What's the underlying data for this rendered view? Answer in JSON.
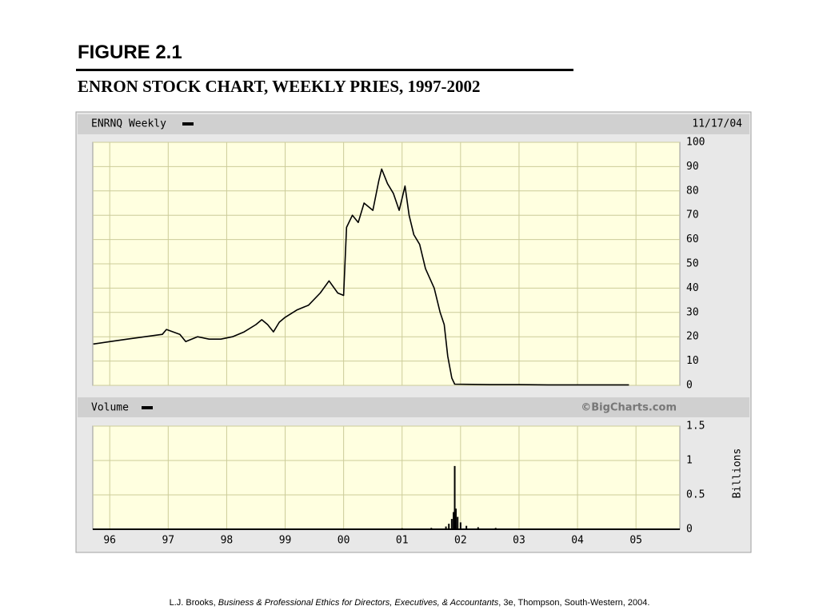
{
  "figure_label": "FIGURE 2.1",
  "caption": "ENRON STOCK CHART, WEEKLY PRIES, 1997-2002",
  "citation": {
    "author": "L.J. Brooks, ",
    "title": "Business & Professional Ethics for Directors, Executives, & Accountants",
    "rest": ", 3e, Thompson, South-Western, 2004."
  },
  "chart_data": [
    {
      "type": "line",
      "header": "ENRNQ Weekly",
      "date": "11/17/04",
      "color": "#000000",
      "grid": true,
      "x": [
        1995.72,
        1996.0,
        1996.3,
        1996.6,
        1996.9,
        1996.97,
        1997.2,
        1997.3,
        1997.5,
        1997.7,
        1997.9,
        1998.1,
        1998.3,
        1998.5,
        1998.6,
        1998.7,
        1998.8,
        1998.9,
        1999.0,
        1999.2,
        1999.4,
        1999.6,
        1999.75,
        1999.9,
        2000.0,
        2000.05,
        2000.15,
        2000.25,
        2000.35,
        2000.5,
        2000.6,
        2000.65,
        2000.75,
        2000.85,
        2000.95,
        2001.05,
        2001.12,
        2001.2,
        2001.3,
        2001.4,
        2001.55,
        2001.65,
        2001.72,
        2001.78,
        2001.85,
        2001.9,
        2002.5,
        2003.0,
        2003.5,
        2004.0,
        2004.5,
        2004.88
      ],
      "values": [
        17,
        18,
        19,
        20,
        21,
        23,
        21,
        18,
        20,
        19,
        19,
        20,
        22,
        25,
        27,
        25,
        22,
        26,
        28,
        31,
        33,
        38,
        43,
        38,
        37,
        65,
        70,
        67,
        75,
        72,
        84,
        89,
        83,
        79,
        72,
        82,
        70,
        62,
        58,
        48,
        40,
        30,
        25,
        12,
        3,
        0.5,
        0.3,
        0.3,
        0.2,
        0.2,
        0.2,
        0.2
      ],
      "xlim": [
        1995.71,
        2005.75
      ],
      "ylim": [
        0,
        100
      ],
      "yticks": [
        0,
        10,
        20,
        30,
        40,
        50,
        60,
        70,
        80,
        90,
        100
      ]
    },
    {
      "type": "bar",
      "header": "Volume",
      "source": "©BigCharts.com",
      "y_label": "Billions",
      "color": "#000000",
      "grid": true,
      "x": [
        1996.5,
        1997.5,
        1998.5,
        1999.5,
        2000.5,
        2001.0,
        2001.5,
        2001.75,
        2001.8,
        2001.85,
        2001.88,
        2001.9,
        2001.92,
        2001.95,
        2002.0,
        2002.1,
        2002.3,
        2002.6,
        2003.0,
        2003.5,
        2004.0,
        2004.5
      ],
      "values": [
        0.005,
        0.005,
        0.008,
        0.008,
        0.01,
        0.015,
        0.02,
        0.04,
        0.08,
        0.15,
        0.25,
        0.92,
        0.3,
        0.18,
        0.1,
        0.05,
        0.03,
        0.02,
        0.01,
        0.01,
        0.01,
        0.008
      ],
      "xlim": [
        1995.71,
        2005.75
      ],
      "ylim": [
        0,
        1.5
      ],
      "yticks": [
        0,
        0.5,
        1,
        1.5
      ],
      "xticks": [
        {
          "value": 1996,
          "label": "96"
        },
        {
          "value": 1997,
          "label": "97"
        },
        {
          "value": 1998,
          "label": "98"
        },
        {
          "value": 1999,
          "label": "99"
        },
        {
          "value": 2000,
          "label": "00"
        },
        {
          "value": 2001,
          "label": "01"
        },
        {
          "value": 2002,
          "label": "02"
        },
        {
          "value": 2003,
          "label": "03"
        },
        {
          "value": 2004,
          "label": "04"
        },
        {
          "value": 2005,
          "label": "05"
        }
      ]
    }
  ]
}
